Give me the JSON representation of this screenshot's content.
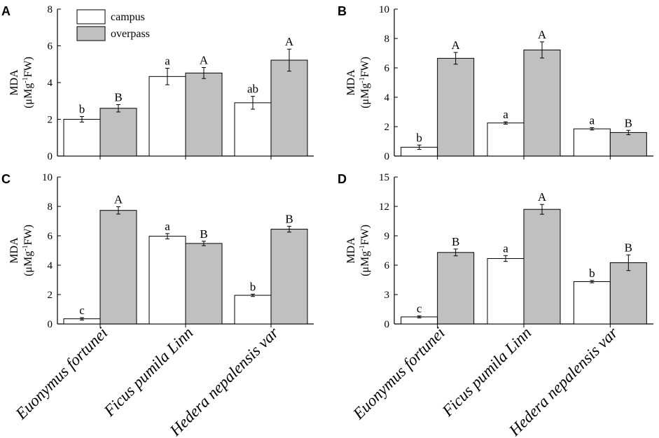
{
  "colors": {
    "campus_fill": "#ffffff",
    "overpass_fill": "#c0c0c0",
    "stroke": "#000000"
  },
  "legend": {
    "campus": "campus",
    "overpass": "overpass"
  },
  "ylabel": {
    "line1": "MDA",
    "mu": "μMg",
    "sup": "-1",
    "fw": "FW"
  },
  "xcategories": [
    "Euonymus fortunei",
    "Ficus pumila Linn",
    "Hedera nepalensis var"
  ],
  "chart_data": [
    {
      "panel": "A",
      "type": "bar",
      "ylim": [
        0,
        8
      ],
      "yticks": [
        0,
        2,
        4,
        6,
        8
      ],
      "categories": [
        "Euonymus fortunei",
        "Ficus pumila Linn",
        "Hedera nepalensis var"
      ],
      "series": [
        {
          "name": "campus",
          "values": [
            2.0,
            4.33,
            2.9
          ],
          "errors": [
            0.15,
            0.45,
            0.35
          ],
          "letters": [
            "b",
            "a",
            "ab"
          ]
        },
        {
          "name": "overpass",
          "values": [
            2.6,
            4.52,
            5.22
          ],
          "errors": [
            0.2,
            0.3,
            0.6
          ],
          "letters": [
            "B",
            "A",
            "A"
          ]
        }
      ]
    },
    {
      "panel": "B",
      "type": "bar",
      "ylim": [
        0,
        10
      ],
      "yticks": [
        0,
        2,
        4,
        6,
        8,
        10
      ],
      "categories": [
        "Euonymus fortunei",
        "Ficus pumila Linn",
        "Hedera nepalensis var"
      ],
      "series": [
        {
          "name": "campus",
          "values": [
            0.6,
            2.25,
            1.85
          ],
          "errors": [
            0.15,
            0.08,
            0.08
          ],
          "letters": [
            "b",
            "a",
            "a"
          ]
        },
        {
          "name": "overpass",
          "values": [
            6.65,
            7.22,
            1.6
          ],
          "errors": [
            0.4,
            0.55,
            0.15
          ],
          "letters": [
            "A",
            "A",
            "B"
          ]
        }
      ]
    },
    {
      "panel": "C",
      "type": "bar",
      "ylim": [
        0,
        10
      ],
      "yticks": [
        0,
        2,
        4,
        6,
        8,
        10
      ],
      "categories": [
        "Euonymus fortunei",
        "Ficus pumila Linn",
        "Hedera nepalensis var"
      ],
      "series": [
        {
          "name": "campus",
          "values": [
            0.35,
            5.97,
            1.95
          ],
          "errors": [
            0.08,
            0.18,
            0.08
          ],
          "letters": [
            "c",
            "a",
            "b"
          ]
        },
        {
          "name": "overpass",
          "values": [
            7.73,
            5.48,
            6.45
          ],
          "errors": [
            0.25,
            0.15,
            0.2
          ],
          "letters": [
            "A",
            "B",
            "B"
          ]
        }
      ]
    },
    {
      "panel": "D",
      "type": "bar",
      "ylim": [
        0,
        15
      ],
      "yticks": [
        0,
        3,
        6,
        9,
        12,
        15
      ],
      "categories": [
        "Euonymus fortunei",
        "Ficus pumila Linn",
        "Hedera nepalensis var"
      ],
      "series": [
        {
          "name": "campus",
          "values": [
            0.72,
            6.68,
            4.32
          ],
          "errors": [
            0.1,
            0.3,
            0.12
          ],
          "letters": [
            "c",
            "a",
            "b"
          ]
        },
        {
          "name": "overpass",
          "values": [
            7.3,
            11.7,
            6.25
          ],
          "errors": [
            0.35,
            0.5,
            0.8
          ],
          "letters": [
            "B",
            "A",
            "B"
          ]
        }
      ]
    }
  ]
}
